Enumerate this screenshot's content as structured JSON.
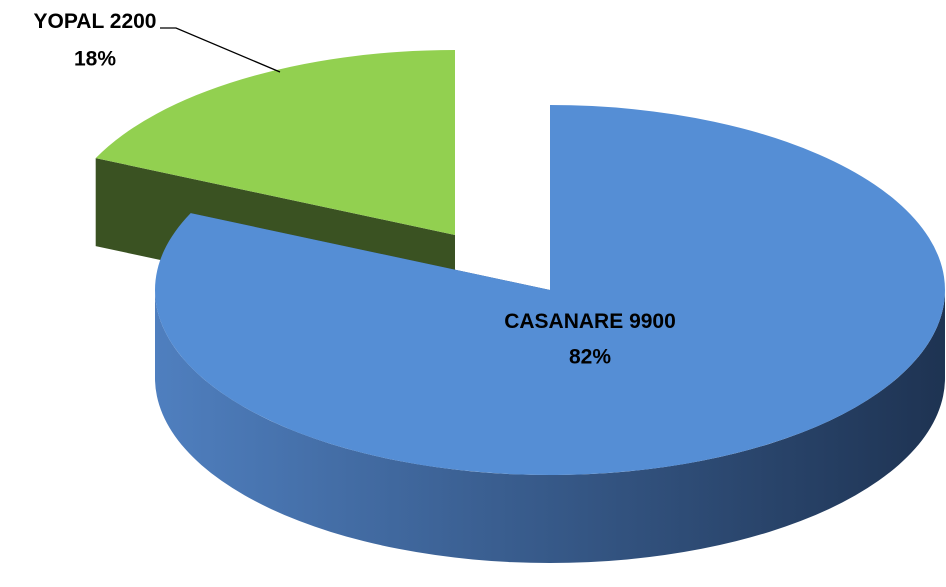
{
  "chart_data": {
    "type": "pie",
    "categories": [
      "CASANARE",
      "YOPAL"
    ],
    "values": [
      9900,
      2200
    ],
    "percent_labels": [
      "82%",
      "18%"
    ],
    "colors": [
      "#558ed5",
      "#92d050"
    ],
    "side_colors": [
      "#2b4a78",
      "#3a5222"
    ]
  }
}
